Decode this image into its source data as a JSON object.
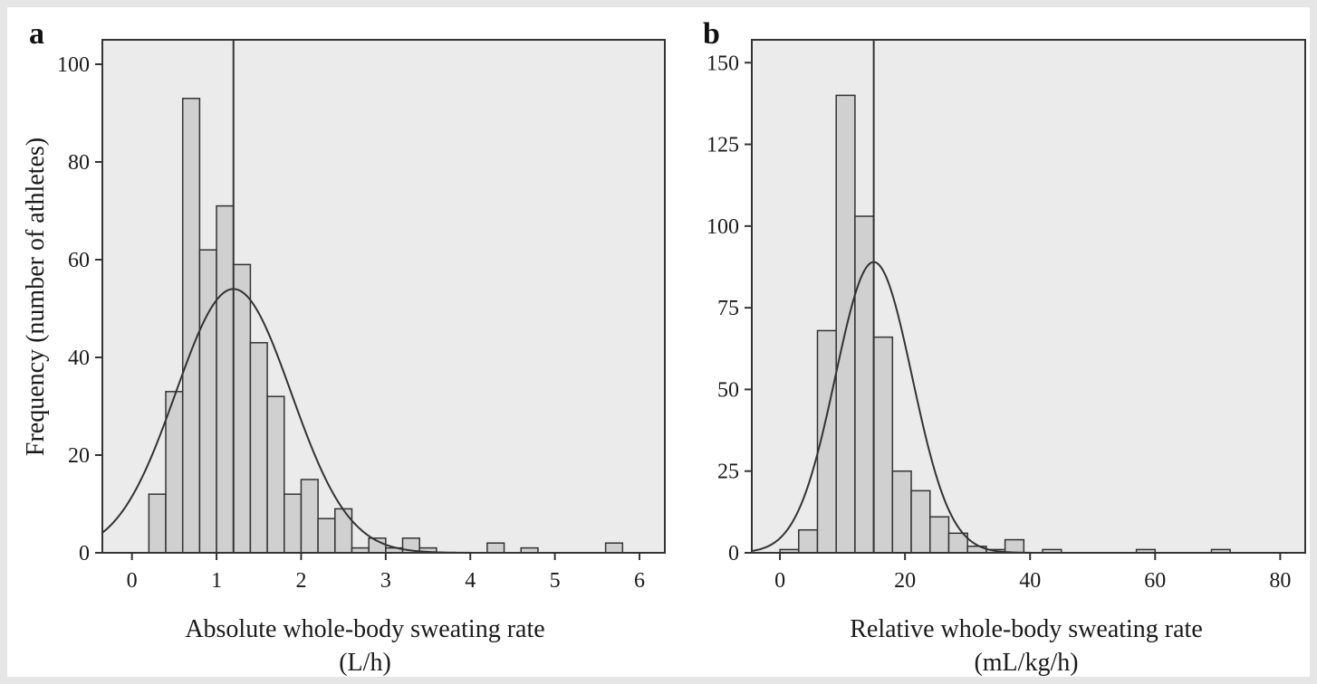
{
  "chart_data": [
    {
      "type": "bar",
      "panel_letter": "a",
      "title": "",
      "xlabel_line1": "Absolute whole-body sweating rate",
      "xlabel_line2": "(L/h)",
      "ylabel": "Frequency (number of athletes)",
      "xlim": [
        -0.35,
        6.3
      ],
      "ylim": [
        0,
        105
      ],
      "xticks": [
        0,
        1,
        2,
        3,
        4,
        5,
        6
      ],
      "yticks": [
        0,
        20,
        40,
        60,
        80,
        100
      ],
      "bin_width": 0.2,
      "bins": [
        {
          "start": 0.2,
          "count": 12
        },
        {
          "start": 0.4,
          "count": 33
        },
        {
          "start": 0.6,
          "count": 93
        },
        {
          "start": 0.8,
          "count": 62
        },
        {
          "start": 1.0,
          "count": 71
        },
        {
          "start": 1.2,
          "count": 59
        },
        {
          "start": 1.4,
          "count": 43
        },
        {
          "start": 1.6,
          "count": 32
        },
        {
          "start": 1.8,
          "count": 12
        },
        {
          "start": 2.0,
          "count": 15
        },
        {
          "start": 2.2,
          "count": 7
        },
        {
          "start": 2.4,
          "count": 9
        },
        {
          "start": 2.6,
          "count": 1
        },
        {
          "start": 2.8,
          "count": 3
        },
        {
          "start": 3.0,
          "count": 1
        },
        {
          "start": 3.2,
          "count": 3
        },
        {
          "start": 3.4,
          "count": 1
        },
        {
          "start": 4.2,
          "count": 2
        },
        {
          "start": 4.6,
          "count": 1
        },
        {
          "start": 5.6,
          "count": 2
        }
      ],
      "mean_line": 1.2,
      "normal_curve": {
        "mean": 1.2,
        "peak": 54
      }
    },
    {
      "type": "bar",
      "panel_letter": "b",
      "title": "",
      "xlabel_line1": "Relative whole-body sweating rate",
      "xlabel_line2": "(mL/kg/h)",
      "ylabel": "",
      "xlim": [
        -4.5,
        84
      ],
      "ylim": [
        0,
        157
      ],
      "xticks": [
        0,
        20,
        40,
        60,
        80
      ],
      "yticks": [
        0,
        25,
        50,
        75,
        100,
        125,
        150
      ],
      "bin_width": 3,
      "bins": [
        {
          "start": 0,
          "count": 1
        },
        {
          "start": 3,
          "count": 7
        },
        {
          "start": 6,
          "count": 68
        },
        {
          "start": 9,
          "count": 140
        },
        {
          "start": 12,
          "count": 103
        },
        {
          "start": 15,
          "count": 66
        },
        {
          "start": 18,
          "count": 25
        },
        {
          "start": 21,
          "count": 19
        },
        {
          "start": 24,
          "count": 11
        },
        {
          "start": 27,
          "count": 6
        },
        {
          "start": 30,
          "count": 2
        },
        {
          "start": 33,
          "count": 1
        },
        {
          "start": 36,
          "count": 4
        },
        {
          "start": 42,
          "count": 1
        },
        {
          "start": 57,
          "count": 1
        },
        {
          "start": 69,
          "count": 1
        }
      ],
      "mean_line": 15,
      "normal_curve": {
        "mean": 15,
        "peak": 89
      }
    }
  ],
  "style": {
    "panel_bg": "#ebebeb",
    "bar_fill": "#d0d0d0",
    "bar_stroke": "#333333",
    "line_color": "#333333"
  }
}
